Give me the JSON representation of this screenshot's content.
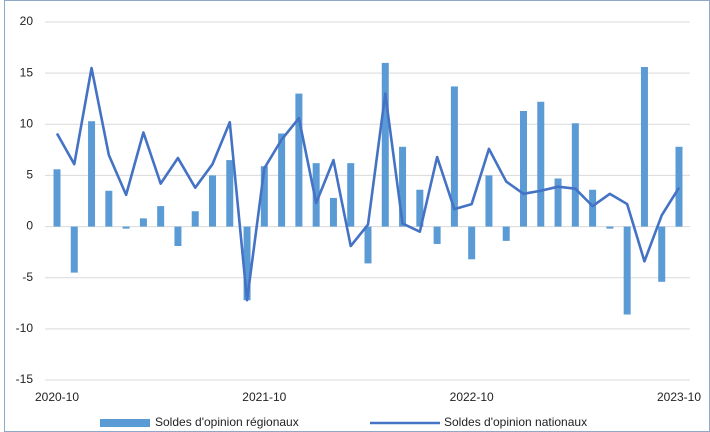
{
  "chart_data": {
    "type": "bar+line",
    "categories": [
      "2020-10",
      null,
      null,
      null,
      null,
      null,
      null,
      null,
      null,
      null,
      null,
      null,
      "2021-10",
      null,
      null,
      null,
      null,
      null,
      null,
      null,
      null,
      null,
      null,
      null,
      "2022-10",
      null,
      null,
      null,
      null,
      null,
      null,
      null,
      null,
      null,
      null,
      null,
      "2023-10"
    ],
    "series": [
      {
        "name": "Soldes d'opinion régionaux",
        "type": "bar",
        "color": "#5b9bd5",
        "values": [
          5.6,
          -4.5,
          10.3,
          3.5,
          -0.2,
          0.8,
          2.0,
          -1.9,
          1.5,
          5.0,
          6.5,
          -7.2,
          5.9,
          9.1,
          13.0,
          6.2,
          2.8,
          6.2,
          -3.6,
          16.0,
          7.8,
          3.6,
          -1.7,
          13.7,
          -3.2,
          5.0,
          -1.4,
          11.3,
          12.2,
          4.7,
          10.1,
          3.6,
          -0.2,
          -8.6,
          15.6,
          -5.4,
          7.8
        ]
      },
      {
        "name": "Soldes d'opinion nationaux",
        "type": "line",
        "color": "#4472c4",
        "values": [
          9.1,
          6.1,
          15.5,
          7.0,
          3.1,
          9.2,
          4.2,
          6.7,
          3.8,
          6.1,
          10.2,
          -7.2,
          5.7,
          8.5,
          10.6,
          2.3,
          6.5,
          -1.9,
          0.2,
          13.0,
          0.3,
          -0.5,
          6.8,
          1.7,
          2.2,
          7.6,
          4.4,
          3.2,
          3.5,
          3.9,
          3.7,
          2.0,
          3.2,
          2.2,
          -3.4,
          1.1,
          3.8
        ]
      }
    ],
    "ylim": [
      -15,
      20
    ],
    "yticks": [
      -15,
      -10,
      -5,
      0,
      5,
      10,
      15,
      20
    ],
    "grid": true,
    "legend": "bottom"
  }
}
